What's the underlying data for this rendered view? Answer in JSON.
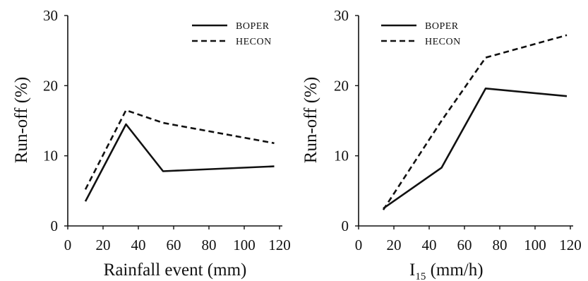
{
  "chart_data": [
    {
      "type": "line",
      "xlabel": "Rainfall event (mm)",
      "ylabel": "Run-off (%)",
      "xlim": [
        0,
        120
      ],
      "ylim": [
        0,
        30
      ],
      "xticks": [
        "0",
        "20",
        "40",
        "60",
        "80",
        "100",
        "120"
      ],
      "yticks": [
        "0",
        "10",
        "20",
        "30"
      ],
      "grid": false,
      "legend": "top-right",
      "series": [
        {
          "name": "BOPER",
          "style": "solid",
          "x": [
            10,
            33,
            54,
            117
          ],
          "y": [
            3.5,
            14.5,
            7.8,
            8.5
          ]
        },
        {
          "name": "HECON",
          "style": "dashed",
          "x": [
            10,
            33,
            54,
            117
          ],
          "y": [
            5.2,
            16.5,
            14.7,
            11.8
          ]
        }
      ]
    },
    {
      "type": "line",
      "xlabel": "I",
      "xlabel_sub": "15",
      "xlabel_unit": " (mm/h)",
      "ylabel": "Run-off (%)",
      "xlim": [
        0,
        120
      ],
      "ylim": [
        0,
        30
      ],
      "xticks": [
        "0",
        "20",
        "40",
        "60",
        "80",
        "100",
        "120"
      ],
      "yticks": [
        "0",
        "10",
        "20",
        "30"
      ],
      "grid": false,
      "legend": "top-left",
      "series": [
        {
          "name": "BOPER",
          "style": "solid",
          "x": [
            14,
            47,
            72,
            118
          ],
          "y": [
            2.5,
            8.3,
            19.6,
            18.5
          ]
        },
        {
          "name": "HECON",
          "style": "dashed",
          "x": [
            14,
            47,
            72,
            118
          ],
          "y": [
            2.3,
            15.0,
            24.0,
            27.2
          ]
        }
      ]
    }
  ]
}
